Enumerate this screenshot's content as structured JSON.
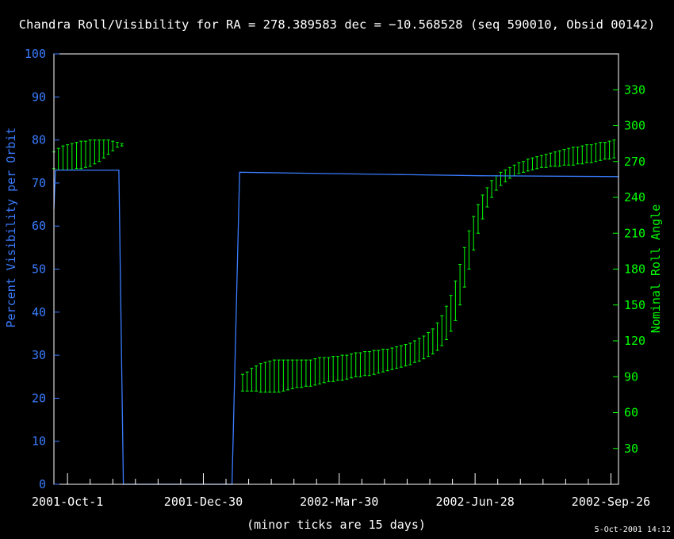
{
  "colors": {
    "background": "#000000",
    "frame": "#ffffff",
    "visibility": "#3a7cff",
    "roll": "#00ff00",
    "text": "#ffffff"
  },
  "chart_data": {
    "type": "line",
    "title": "Chandra Roll/Visibility for RA = 278.389583 dec = −10.568528 (seq 590010, Obsid 00142)",
    "xlabel": "(minor ticks are 15 days)",
    "timestamp": "5-Oct-2001 14:12",
    "grid": false,
    "legend": "none",
    "x_range": [
      "2001-09-22",
      "2002-10-01"
    ],
    "x_tick_labels": [
      "2001-Oct-1",
      "2001-Dec-30",
      "2002-Mar-30",
      "2002-Jun-28",
      "2002-Sep-26"
    ],
    "minor_tick_days": 15,
    "y_left": {
      "label": "Percent Visibility per Orbit",
      "range": [
        0,
        100
      ],
      "ticks": [
        0,
        10,
        20,
        30,
        40,
        50,
        60,
        70,
        80,
        90,
        100
      ]
    },
    "y_right": {
      "label": "Nominal Roll Angle",
      "range": [
        0,
        360
      ],
      "ticks": [
        30,
        60,
        90,
        120,
        150,
        180,
        210,
        240,
        270,
        300,
        330
      ]
    },
    "visibility": {
      "axis": "left",
      "points": [
        [
          "2001-09-22",
          64
        ],
        [
          "2001-09-23",
          73
        ],
        [
          "2001-10-01",
          73
        ],
        [
          "2001-10-20",
          73
        ],
        [
          "2001-11-01",
          73
        ],
        [
          "2001-11-04",
          73
        ],
        [
          "2001-11-07",
          0
        ],
        [
          "2002-01-18",
          0
        ],
        [
          "2002-01-23",
          72.5
        ],
        [
          "2002-03-01",
          72.3
        ],
        [
          "2002-05-01",
          72.0
        ],
        [
          "2002-07-01",
          71.7
        ],
        [
          "2002-10-01",
          71.5
        ]
      ]
    },
    "roll_error_bars": {
      "axis": "right",
      "segments": [
        {
          "start": "2001-09-22",
          "step_days": 3,
          "values": [
            [
              264,
              278
            ],
            [
              263,
              281
            ],
            [
              263,
              283
            ],
            [
              263,
              284
            ],
            [
              263,
              285
            ],
            [
              264,
              286
            ],
            [
              264,
              287
            ],
            [
              265,
              287
            ],
            [
              266,
              288
            ],
            [
              268,
              288
            ],
            [
              270,
              288
            ],
            [
              273,
              288
            ],
            [
              276,
              288
            ],
            [
              279,
              287
            ],
            [
              282,
              286
            ],
            [
              283,
              285
            ]
          ]
        },
        {
          "start": "2002-01-25",
          "step_days": 3,
          "values": [
            [
              78,
              92
            ],
            [
              78,
              94
            ],
            [
              78,
              97
            ],
            [
              78,
              99
            ],
            [
              77,
              101
            ],
            [
              77,
              102
            ],
            [
              77,
              103
            ],
            [
              77,
              104
            ],
            [
              77,
              104
            ],
            [
              78,
              104
            ],
            [
              79,
              104
            ],
            [
              80,
              104
            ],
            [
              81,
              104
            ],
            [
              81,
              104
            ],
            [
              82,
              104
            ],
            [
              82,
              104
            ],
            [
              83,
              105
            ],
            [
              84,
              106
            ],
            [
              85,
              106
            ],
            [
              86,
              106
            ],
            [
              86,
              107
            ],
            [
              87,
              107
            ],
            [
              87,
              108
            ],
            [
              88,
              108
            ],
            [
              89,
              109
            ],
            [
              90,
              110
            ],
            [
              90,
              110
            ],
            [
              91,
              111
            ],
            [
              91,
              111
            ],
            [
              92,
              112
            ],
            [
              93,
              112
            ],
            [
              94,
              113
            ],
            [
              95,
              113
            ],
            [
              96,
              114
            ],
            [
              97,
              115
            ],
            [
              98,
              116
            ],
            [
              99,
              117
            ],
            [
              100,
              118
            ],
            [
              102,
              120
            ],
            [
              103,
              122
            ],
            [
              105,
              124
            ],
            [
              107,
              127
            ],
            [
              109,
              130
            ],
            [
              112,
              135
            ],
            [
              116,
              141
            ],
            [
              121,
              149
            ],
            [
              128,
              158
            ],
            [
              137,
              170
            ],
            [
              150,
              184
            ],
            [
              165,
              198
            ],
            [
              180,
              212
            ],
            [
              196,
              224
            ],
            [
              210,
              234
            ],
            [
              222,
              242
            ],
            [
              232,
              248
            ],
            [
              240,
              254
            ],
            [
              246,
              258
            ],
            [
              250,
              261
            ],
            [
              253,
              263
            ],
            [
              256,
              265
            ],
            [
              258,
              267
            ],
            [
              260,
              269
            ],
            [
              261,
              270
            ],
            [
              262,
              272
            ],
            [
              263,
              273
            ],
            [
              264,
              274
            ],
            [
              265,
              275
            ],
            [
              265,
              276
            ],
            [
              266,
              277
            ],
            [
              266,
              278
            ],
            [
              266,
              279
            ],
            [
              267,
              280
            ],
            [
              267,
              281
            ],
            [
              267,
              282
            ],
            [
              268,
              282
            ],
            [
              268,
              283
            ],
            [
              269,
              284
            ],
            [
              269,
              284
            ],
            [
              270,
              285
            ],
            [
              271,
              286
            ],
            [
              272,
              286
            ],
            [
              272,
              287
            ],
            [
              273,
              288
            ]
          ]
        }
      ]
    }
  }
}
